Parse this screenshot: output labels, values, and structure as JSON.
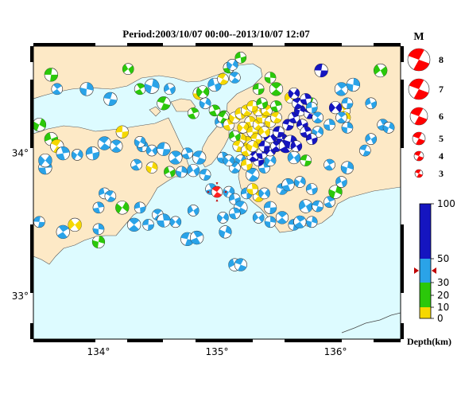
{
  "title": "Period:2003/10/07 00:00--2013/10/07 12:07",
  "map": {
    "lon_range": [
      133.45,
      136.55
    ],
    "lat_range": [
      32.7,
      34.75
    ],
    "x_ticks": [
      "134°",
      "135°",
      "136°"
    ],
    "x_tick_values": [
      134,
      135,
      136
    ],
    "y_ticks": [
      "34°",
      "33°"
    ],
    "y_tick_values": [
      34,
      33
    ],
    "land_color": "#fde9c6",
    "sea_color": "#ddfbff",
    "epicenter": {
      "lon": 135.0,
      "lat": 33.73,
      "mag": 5.0,
      "color": "#ff2020"
    },
    "colors": {
      "shallow": "#f5d800",
      "mid": "#2bc80a",
      "deep": "#2aa3e8",
      "verydeep": "#1515c0"
    }
  },
  "events": [
    {
      "lon": 133.6,
      "lat": 34.55,
      "mag": 3.5,
      "c": "mid"
    },
    {
      "lon": 133.65,
      "lat": 34.45,
      "mag": 3,
      "c": "deep"
    },
    {
      "lon": 133.9,
      "lat": 34.45,
      "mag": 3.5,
      "c": "deep"
    },
    {
      "lon": 134.25,
      "lat": 34.59,
      "mag": 3,
      "c": "mid"
    },
    {
      "lon": 134.1,
      "lat": 34.38,
      "mag": 3.5,
      "c": "deep"
    },
    {
      "lon": 134.35,
      "lat": 34.45,
      "mag": 3,
      "c": "mid"
    },
    {
      "lon": 134.45,
      "lat": 34.47,
      "mag": 3.8,
      "c": "deep"
    },
    {
      "lon": 134.6,
      "lat": 34.45,
      "mag": 3,
      "c": "deep"
    },
    {
      "lon": 134.55,
      "lat": 34.35,
      "mag": 3.5,
      "c": "mid"
    },
    {
      "lon": 134.8,
      "lat": 34.28,
      "mag": 3,
      "c": "mid"
    },
    {
      "lon": 134.9,
      "lat": 34.35,
      "mag": 3,
      "c": "deep"
    },
    {
      "lon": 134.98,
      "lat": 34.48,
      "mag": 3.5,
      "c": "deep"
    },
    {
      "lon": 135.05,
      "lat": 34.52,
      "mag": 3,
      "c": "shallow"
    },
    {
      "lon": 135.1,
      "lat": 34.6,
      "mag": 3,
      "c": "mid"
    },
    {
      "lon": 135.13,
      "lat": 34.62,
      "mag": 3,
      "c": "deep"
    },
    {
      "lon": 135.2,
      "lat": 34.67,
      "mag": 3,
      "c": "mid"
    },
    {
      "lon": 135.15,
      "lat": 34.53,
      "mag": 3,
      "c": "deep"
    },
    {
      "lon": 134.85,
      "lat": 34.42,
      "mag": 3.3,
      "c": "shallow"
    },
    {
      "lon": 134.88,
      "lat": 34.43,
      "mag": 3.3,
      "c": "mid"
    },
    {
      "lon": 135.35,
      "lat": 34.45,
      "mag": 3,
      "c": "mid"
    },
    {
      "lon": 135.5,
      "lat": 34.45,
      "mag": 3.5,
      "c": "mid"
    },
    {
      "lon": 135.45,
      "lat": 34.53,
      "mag": 3,
      "c": "mid"
    },
    {
      "lon": 135.62,
      "lat": 34.39,
      "mag": 3,
      "c": "shallow"
    },
    {
      "lon": 135.88,
      "lat": 34.58,
      "mag": 3.5,
      "c": "verydeep"
    },
    {
      "lon": 136.05,
      "lat": 34.45,
      "mag": 3.5,
      "c": "deep"
    },
    {
      "lon": 136.15,
      "lat": 34.48,
      "mag": 3.5,
      "c": "deep"
    },
    {
      "lon": 136.38,
      "lat": 34.58,
      "mag": 3.5,
      "c": "mid"
    },
    {
      "lon": 135.8,
      "lat": 34.35,
      "mag": 3,
      "c": "mid"
    },
    {
      "lon": 136.07,
      "lat": 34.3,
      "mag": 3.5,
      "c": "shallow"
    },
    {
      "lon": 136.08,
      "lat": 34.25,
      "mag": 3,
      "c": "shallow"
    },
    {
      "lon": 135.03,
      "lat": 34.22,
      "mag": 3,
      "c": "deep"
    },
    {
      "lon": 135.06,
      "lat": 34.26,
      "mag": 3,
      "c": "mid"
    },
    {
      "lon": 134.98,
      "lat": 34.3,
      "mag": 3,
      "c": "mid"
    },
    {
      "lon": 133.5,
      "lat": 34.2,
      "mag": 3.5,
      "c": "mid"
    },
    {
      "lon": 133.6,
      "lat": 34.1,
      "mag": 3.5,
      "c": "mid"
    },
    {
      "lon": 133.65,
      "lat": 34.05,
      "mag": 3.5,
      "c": "shallow"
    },
    {
      "lon": 133.7,
      "lat": 34.0,
      "mag": 3.5,
      "c": "deep"
    },
    {
      "lon": 133.82,
      "lat": 33.99,
      "mag": 3,
      "c": "deep"
    },
    {
      "lon": 133.95,
      "lat": 34.0,
      "mag": 3.5,
      "c": "deep"
    },
    {
      "lon": 134.05,
      "lat": 34.07,
      "mag": 3.5,
      "c": "deep"
    },
    {
      "lon": 133.55,
      "lat": 33.9,
      "mag": 3.5,
      "c": "deep"
    },
    {
      "lon": 133.55,
      "lat": 33.95,
      "mag": 3.5,
      "c": "deep"
    },
    {
      "lon": 134.2,
      "lat": 34.15,
      "mag": 3.3,
      "c": "shallow"
    },
    {
      "lon": 134.15,
      "lat": 34.05,
      "mag": 3.3,
      "c": "deep"
    },
    {
      "lon": 134.37,
      "lat": 34.05,
      "mag": 3,
      "c": "deep"
    },
    {
      "lon": 134.45,
      "lat": 34.02,
      "mag": 3,
      "c": "deep"
    },
    {
      "lon": 134.55,
      "lat": 34.03,
      "mag": 3.5,
      "c": "deep"
    },
    {
      "lon": 134.65,
      "lat": 33.97,
      "mag": 3.5,
      "c": "deep"
    },
    {
      "lon": 134.7,
      "lat": 33.87,
      "mag": 3,
      "c": "deep"
    },
    {
      "lon": 134.8,
      "lat": 33.88,
      "mag": 3.3,
      "c": "deep"
    },
    {
      "lon": 134.9,
      "lat": 33.85,
      "mag": 3,
      "c": "deep"
    },
    {
      "lon": 134.32,
      "lat": 33.92,
      "mag": 3,
      "c": "deep"
    },
    {
      "lon": 134.45,
      "lat": 33.9,
      "mag": 3,
      "c": "shallow"
    },
    {
      "lon": 134.6,
      "lat": 33.87,
      "mag": 3,
      "c": "mid"
    },
    {
      "lon": 134.85,
      "lat": 33.97,
      "mag": 3.5,
      "c": "deep"
    },
    {
      "lon": 134.75,
      "lat": 34.0,
      "mag": 3,
      "c": "deep"
    },
    {
      "lon": 134.35,
      "lat": 34.08,
      "mag": 3,
      "c": "deep"
    },
    {
      "lon": 134.05,
      "lat": 33.72,
      "mag": 3,
      "c": "deep"
    },
    {
      "lon": 134.1,
      "lat": 33.7,
      "mag": 3,
      "c": "deep"
    },
    {
      "lon": 134.0,
      "lat": 33.62,
      "mag": 3,
      "c": "deep"
    },
    {
      "lon": 134.2,
      "lat": 33.62,
      "mag": 3.5,
      "c": "mid"
    },
    {
      "lon": 134.35,
      "lat": 33.62,
      "mag": 3,
      "c": "deep"
    },
    {
      "lon": 134.5,
      "lat": 33.57,
      "mag": 3,
      "c": "deep"
    },
    {
      "lon": 134.55,
      "lat": 33.53,
      "mag": 3.5,
      "c": "deep"
    },
    {
      "lon": 134.65,
      "lat": 33.52,
      "mag": 3,
      "c": "deep"
    },
    {
      "lon": 134.42,
      "lat": 33.5,
      "mag": 3,
      "c": "deep"
    },
    {
      "lon": 134.3,
      "lat": 33.5,
      "mag": 3.5,
      "c": "deep"
    },
    {
      "lon": 134.0,
      "lat": 33.47,
      "mag": 3,
      "c": "deep"
    },
    {
      "lon": 133.8,
      "lat": 33.5,
      "mag": 3.5,
      "c": "shallow"
    },
    {
      "lon": 133.5,
      "lat": 33.52,
      "mag": 3,
      "c": "deep"
    },
    {
      "lon": 133.7,
      "lat": 33.45,
      "mag": 3.5,
      "c": "deep"
    },
    {
      "lon": 134.0,
      "lat": 33.38,
      "mag": 3.3,
      "c": "mid"
    },
    {
      "lon": 134.8,
      "lat": 33.6,
      "mag": 3,
      "c": "deep"
    },
    {
      "lon": 134.75,
      "lat": 33.4,
      "mag": 3.5,
      "c": "deep"
    },
    {
      "lon": 134.83,
      "lat": 33.41,
      "mag": 3.5,
      "c": "deep"
    },
    {
      "lon": 135.07,
      "lat": 33.45,
      "mag": 3.3,
      "c": "deep"
    },
    {
      "lon": 135.15,
      "lat": 33.22,
      "mag": 3.3,
      "c": "deep"
    },
    {
      "lon": 135.2,
      "lat": 33.22,
      "mag": 3.3,
      "c": "deep"
    },
    {
      "lon": 134.95,
      "lat": 33.75,
      "mag": 3,
      "c": "deep"
    },
    {
      "lon": 135.1,
      "lat": 33.73,
      "mag": 3,
      "c": "deep"
    },
    {
      "lon": 135.15,
      "lat": 33.68,
      "mag": 3,
      "c": "deep"
    },
    {
      "lon": 135.2,
      "lat": 33.62,
      "mag": 3.5,
      "c": "deep"
    },
    {
      "lon": 135.15,
      "lat": 33.58,
      "mag": 3,
      "c": "deep"
    },
    {
      "lon": 135.05,
      "lat": 33.55,
      "mag": 3,
      "c": "deep"
    },
    {
      "lon": 135.25,
      "lat": 33.72,
      "mag": 3,
      "c": "deep"
    },
    {
      "lon": 135.35,
      "lat": 33.7,
      "mag": 3,
      "c": "shallow"
    },
    {
      "lon": 135.3,
      "lat": 33.75,
      "mag": 3,
      "c": "shallow"
    },
    {
      "lon": 135.4,
      "lat": 33.72,
      "mag": 3,
      "c": "deep"
    },
    {
      "lon": 135.45,
      "lat": 33.62,
      "mag": 3.3,
      "c": "deep"
    },
    {
      "lon": 135.55,
      "lat": 33.55,
      "mag": 3.3,
      "c": "deep"
    },
    {
      "lon": 135.45,
      "lat": 33.52,
      "mag": 3,
      "c": "deep"
    },
    {
      "lon": 135.35,
      "lat": 33.55,
      "mag": 3,
      "c": "deep"
    },
    {
      "lon": 135.65,
      "lat": 33.5,
      "mag": 3,
      "c": "deep"
    },
    {
      "lon": 135.7,
      "lat": 33.52,
      "mag": 3.3,
      "c": "deep"
    },
    {
      "lon": 135.8,
      "lat": 33.52,
      "mag": 3,
      "c": "deep"
    },
    {
      "lon": 135.75,
      "lat": 33.63,
      "mag": 3.5,
      "c": "deep"
    },
    {
      "lon": 135.85,
      "lat": 33.63,
      "mag": 3,
      "c": "deep"
    },
    {
      "lon": 135.95,
      "lat": 33.66,
      "mag": 3,
      "c": "deep"
    },
    {
      "lon": 136.0,
      "lat": 33.73,
      "mag": 3.5,
      "c": "mid"
    },
    {
      "lon": 136.05,
      "lat": 33.8,
      "mag": 3,
      "c": "deep"
    },
    {
      "lon": 135.55,
      "lat": 33.75,
      "mag": 3,
      "c": "deep"
    },
    {
      "lon": 135.6,
      "lat": 33.78,
      "mag": 3.3,
      "c": "deep"
    },
    {
      "lon": 135.7,
      "lat": 33.8,
      "mag": 3,
      "c": "deep"
    },
    {
      "lon": 135.8,
      "lat": 33.75,
      "mag": 3,
      "c": "deep"
    },
    {
      "lon": 135.3,
      "lat": 33.85,
      "mag": 3.5,
      "c": "deep"
    },
    {
      "lon": 135.4,
      "lat": 33.9,
      "mag": 3,
      "c": "deep"
    },
    {
      "lon": 135.45,
      "lat": 33.95,
      "mag": 3,
      "c": "deep"
    },
    {
      "lon": 135.35,
      "lat": 33.95,
      "mag": 3,
      "c": "verydeep"
    },
    {
      "lon": 135.3,
      "lat": 33.98,
      "mag": 3,
      "c": "verydeep"
    },
    {
      "lon": 135.38,
      "lat": 34.0,
      "mag": 3,
      "c": "verydeep"
    },
    {
      "lon": 135.45,
      "lat": 34.02,
      "mag": 3,
      "c": "verydeep"
    },
    {
      "lon": 135.4,
      "lat": 34.05,
      "mag": 3,
      "c": "verydeep"
    },
    {
      "lon": 135.5,
      "lat": 34.05,
      "mag": 3,
      "c": "verydeep"
    },
    {
      "lon": 135.55,
      "lat": 34.1,
      "mag": 3,
      "c": "verydeep"
    },
    {
      "lon": 135.45,
      "lat": 34.12,
      "mag": 3.5,
      "c": "verydeep"
    },
    {
      "lon": 135.52,
      "lat": 34.15,
      "mag": 3,
      "c": "verydeep"
    },
    {
      "lon": 135.58,
      "lat": 34.05,
      "mag": 3.5,
      "c": "verydeep"
    },
    {
      "lon": 135.62,
      "lat": 34.08,
      "mag": 3.5,
      "c": "verydeep"
    },
    {
      "lon": 135.67,
      "lat": 34.05,
      "mag": 3,
      "c": "verydeep"
    },
    {
      "lon": 135.6,
      "lat": 34.2,
      "mag": 3,
      "c": "verydeep"
    },
    {
      "lon": 135.65,
      "lat": 34.25,
      "mag": 3,
      "c": "verydeep"
    },
    {
      "lon": 135.7,
      "lat": 34.3,
      "mag": 3,
      "c": "verydeep"
    },
    {
      "lon": 135.72,
      "lat": 34.2,
      "mag": 3,
      "c": "verydeep"
    },
    {
      "lon": 135.78,
      "lat": 34.28,
      "mag": 3,
      "c": "verydeep"
    },
    {
      "lon": 135.75,
      "lat": 34.15,
      "mag": 3,
      "c": "verydeep"
    },
    {
      "lon": 135.85,
      "lat": 34.15,
      "mag": 3,
      "c": "deep"
    },
    {
      "lon": 135.8,
      "lat": 34.1,
      "mag": 3,
      "c": "verydeep"
    },
    {
      "lon": 135.68,
      "lat": 34.35,
      "mag": 3,
      "c": "verydeep"
    },
    {
      "lon": 135.75,
      "lat": 34.38,
      "mag": 3,
      "c": "verydeep"
    },
    {
      "lon": 135.65,
      "lat": 34.42,
      "mag": 3,
      "c": "verydeep"
    },
    {
      "lon": 135.8,
      "lat": 34.32,
      "mag": 3,
      "c": "deep"
    },
    {
      "lon": 135.85,
      "lat": 34.25,
      "mag": 3,
      "c": "deep"
    },
    {
      "lon": 135.95,
      "lat": 34.2,
      "mag": 3,
      "c": "deep"
    },
    {
      "lon": 136.0,
      "lat": 34.32,
      "mag": 3.3,
      "c": "verydeep"
    },
    {
      "lon": 136.1,
      "lat": 34.35,
      "mag": 3,
      "c": "deep"
    },
    {
      "lon": 136.05,
      "lat": 34.25,
      "mag": 3,
      "c": "deep"
    },
    {
      "lon": 136.1,
      "lat": 34.18,
      "mag": 3,
      "c": "deep"
    },
    {
      "lon": 135.65,
      "lat": 33.97,
      "mag": 3.3,
      "c": "deep"
    },
    {
      "lon": 135.75,
      "lat": 33.95,
      "mag": 3,
      "c": "mid"
    },
    {
      "lon": 135.95,
      "lat": 33.92,
      "mag": 3,
      "c": "deep"
    },
    {
      "lon": 136.1,
      "lat": 33.9,
      "mag": 3.3,
      "c": "deep"
    },
    {
      "lon": 136.3,
      "lat": 34.1,
      "mag": 3,
      "c": "deep"
    },
    {
      "lon": 136.25,
      "lat": 34.02,
      "mag": 3,
      "c": "deep"
    },
    {
      "lon": 136.4,
      "lat": 34.2,
      "mag": 3,
      "c": "deep"
    },
    {
      "lon": 136.45,
      "lat": 34.18,
      "mag": 3,
      "c": "deep"
    },
    {
      "lon": 136.3,
      "lat": 34.35,
      "mag": 3,
      "c": "deep"
    },
    {
      "lon": 135.05,
      "lat": 34.25,
      "mag": 3,
      "c": "mid"
    },
    {
      "lon": 135.1,
      "lat": 34.2,
      "mag": 3,
      "c": "shallow"
    },
    {
      "lon": 135.15,
      "lat": 34.25,
      "mag": 3,
      "c": "shallow"
    },
    {
      "lon": 135.2,
      "lat": 34.28,
      "mag": 3,
      "c": "shallow"
    },
    {
      "lon": 135.25,
      "lat": 34.3,
      "mag": 3,
      "c": "shallow"
    },
    {
      "lon": 135.28,
      "lat": 34.22,
      "mag": 3,
      "c": "shallow"
    },
    {
      "lon": 135.22,
      "lat": 34.18,
      "mag": 3,
      "c": "shallow"
    },
    {
      "lon": 135.3,
      "lat": 34.15,
      "mag": 3,
      "c": "shallow"
    },
    {
      "lon": 135.35,
      "lat": 34.2,
      "mag": 3,
      "c": "shallow"
    },
    {
      "lon": 135.38,
      "lat": 34.25,
      "mag": 3,
      "c": "shallow"
    },
    {
      "lon": 135.35,
      "lat": 34.3,
      "mag": 3,
      "c": "shallow"
    },
    {
      "lon": 135.3,
      "lat": 34.33,
      "mag": 3,
      "c": "shallow"
    },
    {
      "lon": 135.42,
      "lat": 34.3,
      "mag": 3,
      "c": "shallow"
    },
    {
      "lon": 135.45,
      "lat": 34.22,
      "mag": 3,
      "c": "shallow"
    },
    {
      "lon": 135.4,
      "lat": 34.15,
      "mag": 3,
      "c": "shallow"
    },
    {
      "lon": 135.33,
      "lat": 34.1,
      "mag": 3,
      "c": "shallow"
    },
    {
      "lon": 135.25,
      "lat": 34.08,
      "mag": 3,
      "c": "shallow"
    },
    {
      "lon": 135.2,
      "lat": 34.1,
      "mag": 3,
      "c": "shallow"
    },
    {
      "lon": 135.15,
      "lat": 34.12,
      "mag": 3,
      "c": "mid"
    },
    {
      "lon": 135.18,
      "lat": 34.05,
      "mag": 3,
      "c": "shallow"
    },
    {
      "lon": 135.25,
      "lat": 34.02,
      "mag": 3,
      "c": "shallow"
    },
    {
      "lon": 135.3,
      "lat": 34.05,
      "mag": 3,
      "c": "shallow"
    },
    {
      "lon": 135.38,
      "lat": 34.35,
      "mag": 3,
      "c": "mid"
    },
    {
      "lon": 135.5,
      "lat": 34.25,
      "mag": 3,
      "c": "shallow"
    },
    {
      "lon": 135.5,
      "lat": 34.33,
      "mag": 3,
      "c": "mid"
    },
    {
      "lon": 135.2,
      "lat": 33.95,
      "mag": 3,
      "c": "deep"
    },
    {
      "lon": 135.25,
      "lat": 33.92,
      "mag": 3,
      "c": "shallow"
    },
    {
      "lon": 135.15,
      "lat": 33.9,
      "mag": 3,
      "c": "deep"
    },
    {
      "lon": 135.05,
      "lat": 33.97,
      "mag": 3,
      "c": "deep"
    },
    {
      "lon": 135.1,
      "lat": 33.95,
      "mag": 3,
      "c": "deep"
    }
  ],
  "legend": {
    "title": "M",
    "items": [
      {
        "label": "8",
        "mag": 8
      },
      {
        "label": "7",
        "mag": 7
      },
      {
        "label": "6",
        "mag": 6
      },
      {
        "label": "5",
        "mag": 5
      },
      {
        "label": "4",
        "mag": 4
      },
      {
        "label": "3",
        "mag": 3
      }
    ],
    "color": "#ff0000"
  },
  "depth_scale": {
    "title": "Depth(km)",
    "labels": [
      "100",
      "50",
      "30",
      "20",
      "10",
      "0"
    ],
    "label_values": [
      100,
      50,
      30,
      20,
      10,
      0
    ],
    "bands": [
      {
        "from": 0,
        "to": 10,
        "color": "#f5d800"
      },
      {
        "from": 10,
        "to": 20,
        "color": "#2bc80a"
      },
      {
        "from": 20,
        "to": 30,
        "color": "#2bc80a"
      },
      {
        "from": 30,
        "to": 50,
        "color": "#2aa3e8"
      },
      {
        "from": 50,
        "to": 100,
        "color": "#1515c0"
      }
    ],
    "marker_depth": 40
  }
}
